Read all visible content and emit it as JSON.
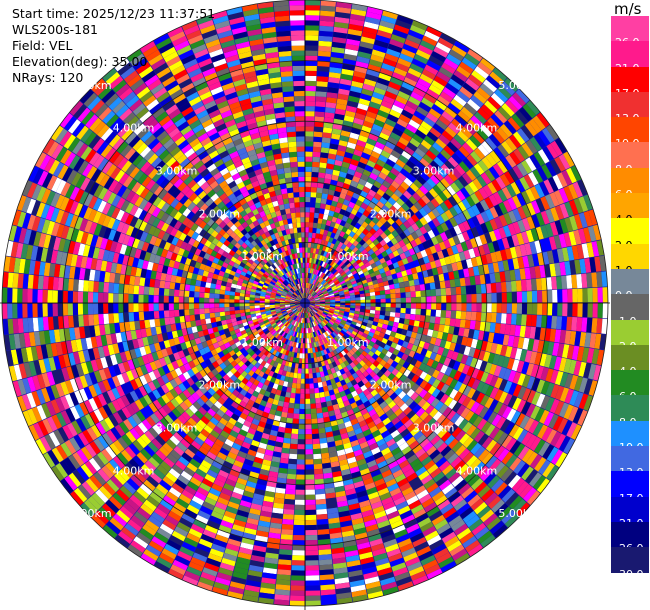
{
  "info": {
    "start_time": "Start time: 2025/12/23 11:37:51",
    "instrument": "WLS200s-181",
    "field": "Field: VEL",
    "elevation": "Elevation(deg): 35.00",
    "nrays": "NRays: 120"
  },
  "colorbar": {
    "unit": "m/s",
    "levels": [
      {
        "label": "26.0",
        "color": "#ff3fa3"
      },
      {
        "label": "21.0",
        "color": "#ff1a8c"
      },
      {
        "label": "17.0",
        "color": "#ff0000"
      },
      {
        "label": "13.0",
        "color": "#f03030"
      },
      {
        "label": "10.0",
        "color": "#ff4500"
      },
      {
        "label": "8.0",
        "color": "#ff7050"
      },
      {
        "label": "6.0",
        "color": "#ff8c00"
      },
      {
        "label": "4.0",
        "color": "#ffa500"
      },
      {
        "label": "2.0",
        "color": "#ffff00"
      },
      {
        "label": "1.0",
        "color": "#ffd700"
      },
      {
        "label": "0.0",
        "color": "#778899"
      },
      {
        "label": "-1.0",
        "color": "#666666"
      },
      {
        "label": "-2.0",
        "color": "#9acd32"
      },
      {
        "label": "-4.0",
        "color": "#6b8e23"
      },
      {
        "label": "-6.0",
        "color": "#228b22"
      },
      {
        "label": "-8.0",
        "color": "#2e8b57"
      },
      {
        "label": "-10.0",
        "color": "#1e90ff"
      },
      {
        "label": "-13.0",
        "color": "#4169e1"
      },
      {
        "label": "-17.0",
        "color": "#0000ff"
      },
      {
        "label": "-21.0",
        "color": "#0000cd"
      },
      {
        "label": "-26.0",
        "color": "#000080"
      },
      {
        "label": "-30.0",
        "color": "#191970"
      }
    ]
  },
  "range_rings": [
    "1.00km",
    "2.00km",
    "3.00km",
    "4.00km",
    "5.00km"
  ],
  "chart_data": {
    "type": "heatmap",
    "projection": "polar (PPI)",
    "field": "VEL",
    "units": "m/s",
    "elevation_deg": 35.0,
    "n_rays": 120,
    "max_range_km": 5.0,
    "color_range": [
      -30.0,
      26.0
    ],
    "ring_labels": [
      "1.00km",
      "2.00km",
      "3.00km",
      "4.00km",
      "5.00km"
    ]
  }
}
